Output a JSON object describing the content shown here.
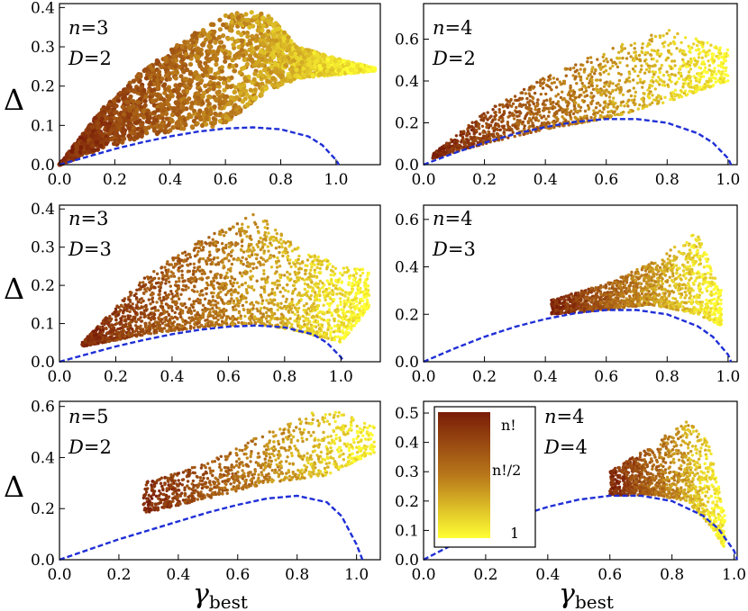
{
  "axis_labels": {
    "y": "Δ",
    "x_main": "γ",
    "x_sub": "best"
  },
  "colorbar": {
    "labels": [
      "n!",
      "n!/2",
      "1"
    ],
    "colors": [
      "#7a1d08",
      "#b8771a",
      "#ffff33"
    ]
  },
  "chart_data": [
    {
      "type": "scatter",
      "annotation": {
        "n_label": "n",
        "n_value": "=3",
        "d_label": "D",
        "d_value": "=2"
      },
      "xlim": [
        0,
        1.16
      ],
      "ylim": [
        0,
        0.41
      ],
      "xticks": [
        "0.0",
        "0.2",
        "0.4",
        "0.6",
        "0.8",
        "1.0"
      ],
      "yticks": [
        "0.0",
        "0.1",
        "0.2",
        "0.3",
        "0.4"
      ],
      "scatter_region": {
        "x": [
          0.0,
          0.15,
          0.3,
          0.45,
          0.6,
          0.68,
          0.76,
          0.86,
          1.0,
          1.14
        ],
        "upper": [
          0.0,
          0.14,
          0.24,
          0.32,
          0.38,
          0.393,
          0.38,
          0.3,
          0.27,
          0.245
        ],
        "lower": [
          0.0,
          0.04,
          0.07,
          0.09,
          0.1,
          0.15,
          0.19,
          0.22,
          0.23,
          0.24
        ]
      },
      "boundary_curve": {
        "x": [
          0,
          0.1,
          0.2,
          0.3,
          0.4,
          0.5,
          0.6,
          0.7,
          0.8,
          0.9,
          0.95,
          1.0,
          1.01
        ],
        "y": [
          0,
          0.02,
          0.04,
          0.057,
          0.072,
          0.084,
          0.092,
          0.095,
          0.09,
          0.072,
          0.05,
          0.012,
          0
        ]
      },
      "count": 2600,
      "dense": true
    },
    {
      "type": "scatter",
      "annotation": {
        "n_label": "n",
        "n_value": "=4",
        "d_label": "D",
        "d_value": "=2"
      },
      "xlim": [
        0,
        1.03
      ],
      "ylim": [
        0,
        0.77
      ],
      "xticks": [
        "0.0",
        "0.2",
        "0.4",
        "0.6",
        "0.8",
        "1.0"
      ],
      "yticks": [
        "0.0",
        "0.2",
        "0.4",
        "0.6"
      ],
      "scatter_region": {
        "x": [
          0.03,
          0.2,
          0.4,
          0.6,
          0.8,
          1.0
        ],
        "upper": [
          0.05,
          0.25,
          0.42,
          0.55,
          0.65,
          0.55
        ],
        "lower": [
          0.03,
          0.1,
          0.17,
          0.22,
          0.3,
          0.4
        ]
      },
      "boundary_curve": {
        "x": [
          0,
          0.1,
          0.2,
          0.3,
          0.4,
          0.5,
          0.6,
          0.7,
          0.8,
          0.9,
          0.95,
          1.0,
          1.01
        ],
        "y": [
          0,
          0.055,
          0.105,
          0.147,
          0.18,
          0.205,
          0.218,
          0.218,
          0.2,
          0.15,
          0.105,
          0.03,
          0
        ]
      },
      "count": 1500,
      "dense": false
    },
    {
      "type": "scatter",
      "annotation": {
        "n_label": "n",
        "n_value": "=3",
        "d_label": "D",
        "d_value": "=3"
      },
      "xlim": [
        0,
        1.14
      ],
      "ylim": [
        0,
        0.41
      ],
      "xticks": [
        "0.0",
        "0.2",
        "0.4",
        "0.6",
        "0.8",
        "1.0"
      ],
      "yticks": [
        "0.0",
        "0.1",
        "0.2",
        "0.3",
        "0.4"
      ],
      "scatter_region": {
        "x": [
          0.08,
          0.3,
          0.5,
          0.7,
          0.85,
          1.0,
          1.1
        ],
        "upper": [
          0.05,
          0.22,
          0.32,
          0.39,
          0.3,
          0.25,
          0.24
        ],
        "lower": [
          0.04,
          0.07,
          0.09,
          0.1,
          0.08,
          0.05,
          0.14
        ]
      },
      "boundary_curve": {
        "x": [
          0,
          0.1,
          0.2,
          0.3,
          0.4,
          0.5,
          0.6,
          0.7,
          0.8,
          0.9,
          0.95,
          1.0,
          1.01
        ],
        "y": [
          0,
          0.02,
          0.04,
          0.057,
          0.072,
          0.084,
          0.092,
          0.095,
          0.09,
          0.072,
          0.05,
          0.012,
          0
        ]
      },
      "count": 2400,
      "dense": false
    },
    {
      "type": "scatter",
      "annotation": {
        "n_label": "n",
        "n_value": "=4",
        "d_label": "D",
        "d_value": "=3"
      },
      "xlim": [
        0,
        1.03
      ],
      "ylim": [
        0,
        0.66
      ],
      "xticks": [
        "0.0",
        "0.2",
        "0.4",
        "0.6",
        "0.8",
        "1.0"
      ],
      "yticks": [
        "0.0",
        "0.2",
        "0.4",
        "0.6"
      ],
      "scatter_region": {
        "x": [
          0.42,
          0.6,
          0.75,
          0.9,
          0.98
        ],
        "upper": [
          0.26,
          0.33,
          0.42,
          0.55,
          0.3
        ],
        "lower": [
          0.2,
          0.22,
          0.24,
          0.2,
          0.15
        ]
      },
      "boundary_curve": {
        "x": [
          0,
          0.1,
          0.2,
          0.3,
          0.4,
          0.5,
          0.6,
          0.7,
          0.8,
          0.9,
          0.95,
          1.0,
          1.01
        ],
        "y": [
          0,
          0.055,
          0.105,
          0.147,
          0.18,
          0.205,
          0.218,
          0.218,
          0.2,
          0.15,
          0.105,
          0.03,
          0
        ]
      },
      "count": 1400,
      "dense": false
    },
    {
      "type": "scatter",
      "annotation": {
        "n_label": "n",
        "n_value": "=5",
        "d_label": "D",
        "d_value": "=2"
      },
      "xlim": [
        0,
        1.08
      ],
      "ylim": [
        0,
        0.62
      ],
      "xticks": [
        "0.0",
        "0.2",
        "0.4",
        "0.6",
        "0.8",
        "1.0"
      ],
      "yticks": [
        "0.0",
        "0.2",
        "0.4",
        "0.6"
      ],
      "scatter_region": {
        "x": [
          0.28,
          0.5,
          0.7,
          0.9,
          1.06
        ],
        "upper": [
          0.3,
          0.38,
          0.5,
          0.6,
          0.52
        ],
        "lower": [
          0.18,
          0.24,
          0.3,
          0.33,
          0.42
        ]
      },
      "boundary_curve": {
        "x": [
          0,
          0.1,
          0.2,
          0.3,
          0.4,
          0.5,
          0.6,
          0.7,
          0.8,
          0.9,
          0.95,
          1.0,
          1.02
        ],
        "y": [
          0,
          0.04,
          0.08,
          0.115,
          0.15,
          0.185,
          0.215,
          0.24,
          0.25,
          0.225,
          0.17,
          0.06,
          0
        ]
      },
      "count": 1000,
      "dense": false
    },
    {
      "type": "scatter",
      "annotation": {
        "n_label": "n",
        "n_value": "=4",
        "d_label": "D",
        "d_value": "=4"
      },
      "xlim": [
        0,
        1.01
      ],
      "ylim": [
        0,
        0.54
      ],
      "xticks": [
        "0.0",
        "0.2",
        "0.4",
        "0.6",
        "0.8",
        "1.0"
      ],
      "yticks": [
        "0.0",
        "0.1",
        "0.2",
        "0.3",
        "0.4",
        "0.5"
      ],
      "scatter_region": {
        "x": [
          0.6,
          0.75,
          0.85,
          0.92,
          0.97
        ],
        "upper": [
          0.3,
          0.4,
          0.48,
          0.4,
          0.15
        ],
        "lower": [
          0.22,
          0.22,
          0.2,
          0.12,
          0.04
        ]
      },
      "boundary_curve": {
        "x": [
          0,
          0.1,
          0.2,
          0.3,
          0.4,
          0.5,
          0.6,
          0.7,
          0.8,
          0.9,
          0.95,
          1.0,
          1.01
        ],
        "y": [
          0,
          0.055,
          0.105,
          0.147,
          0.18,
          0.205,
          0.218,
          0.218,
          0.2,
          0.15,
          0.105,
          0.03,
          0
        ]
      },
      "count": 1100,
      "dense": false
    }
  ]
}
